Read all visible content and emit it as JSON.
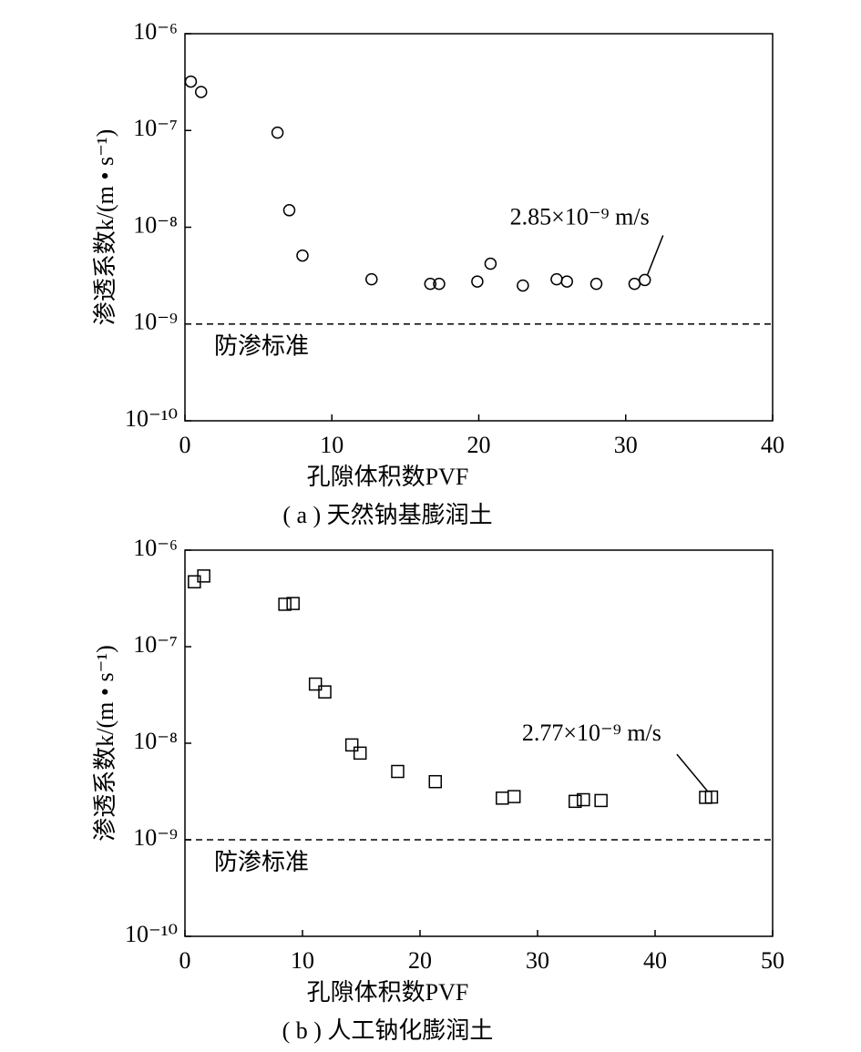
{
  "chart_data": [
    {
      "type": "scatter",
      "marker": "circle",
      "color": "#000000",
      "log_y": true,
      "x_label": "孔隙体积数PVF",
      "y_label": "渗透系数k/(m • s⁻¹)",
      "caption": "( a ) 天然钠基膨润土",
      "x": [
        0.4,
        1.1,
        6.3,
        7.1,
        8.0,
        12.7,
        16.7,
        17.3,
        19.9,
        20.8,
        23.0,
        25.3,
        26.0,
        28.0,
        30.6,
        31.3
      ],
      "values": [
        3.2e-07,
        2.5e-07,
        9.5e-08,
        1.5e-08,
        5.1e-09,
        2.9e-09,
        2.6e-09,
        2.6e-09,
        2.75e-09,
        4.2e-09,
        2.5e-09,
        2.9e-09,
        2.75e-09,
        2.6e-09,
        2.6e-09,
        2.85e-09
      ],
      "xlim": [
        0,
        40
      ],
      "xticks": [
        0,
        10,
        20,
        30,
        40
      ],
      "ylim": [
        1e-10,
        1e-06
      ],
      "yticks": [
        {
          "value": 1e-10,
          "label": "10⁻¹⁰"
        },
        {
          "value": 1e-09,
          "label": "10⁻⁹"
        },
        {
          "value": 1e-08,
          "label": "10⁻⁸"
        },
        {
          "value": 1e-07,
          "label": "10⁻⁷"
        },
        {
          "value": 1e-06,
          "label": "10⁻⁶"
        }
      ],
      "reference_line": {
        "value": 1e-09,
        "label": "防渗标准"
      },
      "annotation": "2.85×10⁻⁹ m/s"
    },
    {
      "type": "scatter",
      "marker": "square",
      "color": "#000000",
      "log_y": true,
      "x_label": "孔隙体积数PVF",
      "y_label": "渗透系数k/(m • s⁻¹)",
      "caption": "( b ) 人工钠化膨润土",
      "x": [
        0.8,
        1.6,
        8.5,
        9.2,
        11.1,
        11.9,
        14.2,
        14.9,
        18.1,
        21.3,
        27.0,
        28.0,
        33.2,
        33.9,
        35.4,
        44.3,
        44.8
      ],
      "values": [
        4.7e-07,
        5.4e-07,
        2.75e-07,
        2.8e-07,
        4.1e-08,
        3.4e-08,
        9.6e-09,
        7.9e-09,
        5.1e-09,
        4e-09,
        2.7e-09,
        2.8e-09,
        2.5e-09,
        2.6e-09,
        2.55e-09,
        2.75e-09,
        2.77e-09
      ],
      "xlim": [
        0,
        50
      ],
      "xticks": [
        0,
        10,
        20,
        30,
        40,
        50
      ],
      "ylim": [
        1e-10,
        1e-06
      ],
      "yticks": [
        {
          "value": 1e-10,
          "label": "10⁻¹⁰"
        },
        {
          "value": 1e-09,
          "label": "10⁻⁹"
        },
        {
          "value": 1e-08,
          "label": "10⁻⁸"
        },
        {
          "value": 1e-07,
          "label": "10⁻⁷"
        },
        {
          "value": 1e-06,
          "label": "10⁻⁶"
        }
      ],
      "reference_line": {
        "value": 1e-09,
        "label": "防渗标准"
      },
      "annotation": "2.77×10⁻⁹ m/s"
    }
  ]
}
